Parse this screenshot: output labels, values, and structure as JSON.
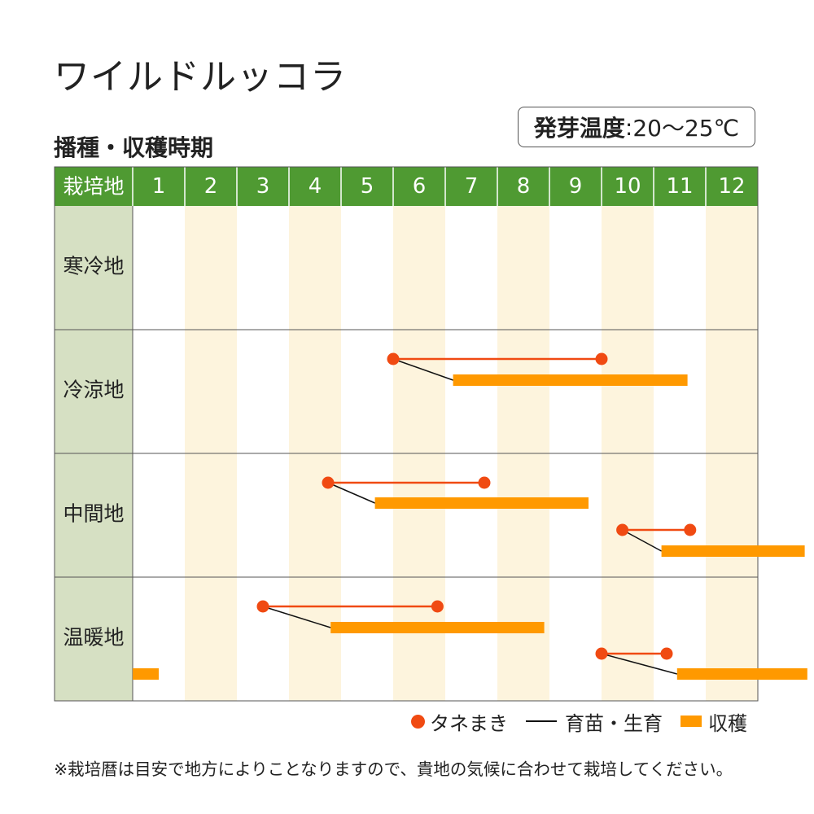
{
  "title": "ワイルドルッコラ",
  "subtitle": "播種・収穫時期",
  "temperature": {
    "label": "発芽温度",
    "value": "20〜25℃"
  },
  "chart_data": {
    "type": "gantt",
    "header_label": "栽培地",
    "months": [
      "1",
      "2",
      "3",
      "4",
      "5",
      "6",
      "7",
      "8",
      "9",
      "10",
      "11",
      "12"
    ],
    "rows": [
      {
        "name": "寒冷地",
        "plans": []
      },
      {
        "name": "冷涼地",
        "plans": [
          {
            "sow": [
              5.0,
              9.0
            ],
            "harvest": [
              6.15,
              10.65
            ]
          }
        ]
      },
      {
        "name": "中間地",
        "plans": [
          {
            "sow": [
              3.75,
              6.75
            ],
            "harvest": [
              4.65,
              8.75
            ]
          },
          {
            "sow": [
              9.4,
              10.7
            ],
            "harvest": [
              10.15,
              12.9
            ]
          }
        ]
      },
      {
        "name": "温暖地",
        "plans": [
          {
            "sow": [
              2.5,
              5.85
            ],
            "harvest": [
              3.8,
              7.9
            ]
          },
          {
            "sow": [
              9.0,
              9.25
            ],
            "harvest": [
              0.0,
              0.5
            ]
          },
          {
            "sow": [
              9.0,
              10.25
            ],
            "harvest": [
              10.45,
              12.95
            ]
          }
        ]
      }
    ],
    "legend": {
      "sow": "タネまき",
      "grow": "育苗・生育",
      "harvest": "収穫"
    },
    "colors": {
      "header_bg": "#4f9a32",
      "row_label_bg": "#d6e0c3",
      "stripe": "#fdf4dd",
      "sow": "#f04a12",
      "sow_line": "#f04a12",
      "grow_line": "#111111",
      "harvest": "#ff9900",
      "grid": "#555555"
    }
  },
  "note": "※栽培暦は目安で地方によりことなりますので、貴地の気候に合わせて栽培してください。"
}
